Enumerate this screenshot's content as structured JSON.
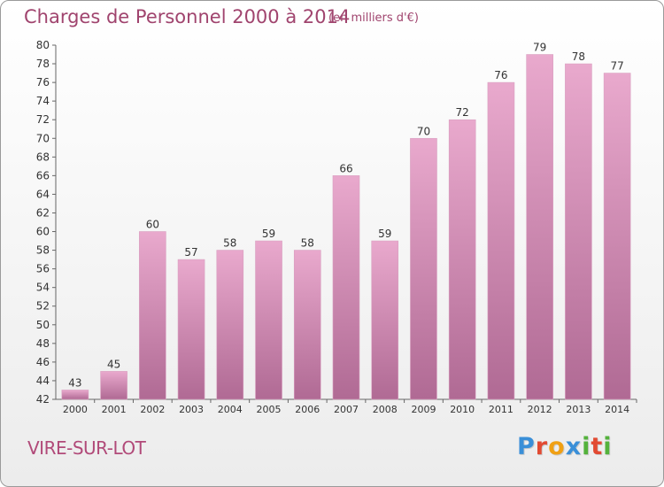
{
  "header": {
    "title": "Charges de Personnel 2000 à 2014",
    "subtitle": "(en milliers d'€)"
  },
  "footer": {
    "town": "VIRE-SUR-LOT",
    "logo": {
      "letters": [
        "P",
        "r",
        "o",
        "x",
        "i",
        "t",
        "i"
      ],
      "colors": [
        "#3a8fd8",
        "#e24a32",
        "#f0a014",
        "#3a8fd8",
        "#54b23c",
        "#e24a32",
        "#54b23c"
      ]
    }
  },
  "colors": {
    "bar_light": "#e9a9cd",
    "bar_dark": "#b06a94",
    "text": "#333333",
    "accent": "#a0446e"
  },
  "chart_data": {
    "type": "bar",
    "categories": [
      "2000",
      "2001",
      "2002",
      "2003",
      "2004",
      "2005",
      "2006",
      "2007",
      "2008",
      "2009",
      "2010",
      "2011",
      "2012",
      "2013",
      "2014"
    ],
    "values": [
      43,
      45,
      60,
      57,
      58,
      59,
      58,
      66,
      59,
      70,
      72,
      76,
      79,
      78,
      77
    ],
    "title": "Charges de Personnel 2000 à 2014",
    "ylim": [
      42,
      80
    ],
    "yticks": [
      42,
      44,
      46,
      48,
      50,
      52,
      54,
      56,
      58,
      60,
      62,
      64,
      66,
      68,
      70,
      72,
      74,
      76,
      78,
      80
    ],
    "grid": false,
    "data_labels": true
  }
}
